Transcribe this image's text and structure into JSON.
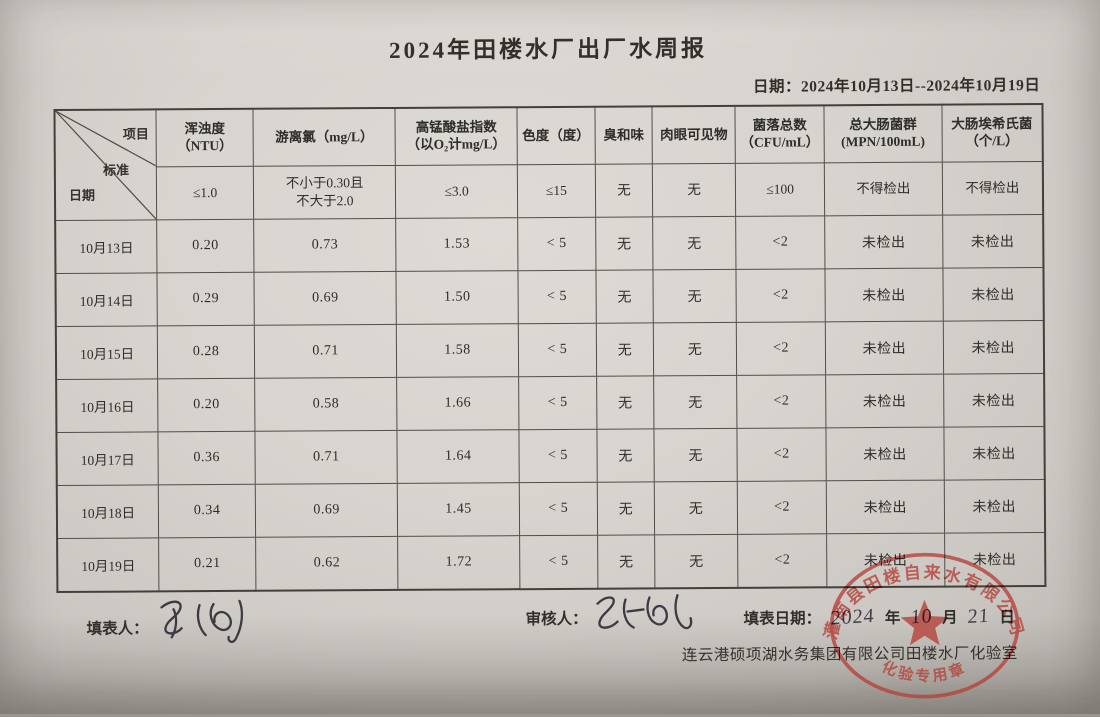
{
  "page": {
    "title": "2024年田楼水厂出厂水周报",
    "date_range_label": "日期：2024年10月13日--2024年10月19日"
  },
  "table": {
    "corner": {
      "top": "项目",
      "middle": "标准",
      "bottom": "日期"
    },
    "columns": [
      {
        "label": "浑浊度",
        "sub": "（NTU）"
      },
      {
        "label": "游离氯（mg/L）",
        "sub": ""
      },
      {
        "label": "高锰酸盐指数",
        "sub": "（以O₂计mg/L）"
      },
      {
        "label": "色度（度）",
        "sub": ""
      },
      {
        "label": "臭和味",
        "sub": ""
      },
      {
        "label": "肉眼可见物",
        "sub": ""
      },
      {
        "label": "菌落总数",
        "sub": "（CFU/mL）"
      },
      {
        "label": "总大肠菌群",
        "sub": "(MPN/100mL)"
      },
      {
        "label": "大肠埃希氏菌",
        "sub": "（个/L）"
      }
    ],
    "standards": [
      "≤1.0",
      "不小于0.30且\n不大于2.0",
      "≤3.0",
      "≤15",
      "无",
      "无",
      "≤100",
      "不得检出",
      "不得检出"
    ],
    "rows": [
      {
        "date": "10月13日",
        "values": [
          "0.20",
          "0.73",
          "1.53",
          "< 5",
          "无",
          "无",
          "<2",
          "未检出",
          "未检出"
        ]
      },
      {
        "date": "10月14日",
        "values": [
          "0.29",
          "0.69",
          "1.50",
          "< 5",
          "无",
          "无",
          "<2",
          "未检出",
          "未检出"
        ]
      },
      {
        "date": "10月15日",
        "values": [
          "0.28",
          "0.71",
          "1.58",
          "< 5",
          "无",
          "无",
          "<2",
          "未检出",
          "未检出"
        ]
      },
      {
        "date": "10月16日",
        "values": [
          "0.20",
          "0.58",
          "1.66",
          "< 5",
          "无",
          "无",
          "<2",
          "未检出",
          "未检出"
        ]
      },
      {
        "date": "10月17日",
        "values": [
          "0.36",
          "0.71",
          "1.64",
          "< 5",
          "无",
          "无",
          "<2",
          "未检出",
          "未检出"
        ]
      },
      {
        "date": "10月18日",
        "values": [
          "0.34",
          "0.69",
          "1.45",
          "< 5",
          "无",
          "无",
          "<2",
          "未检出",
          "未检出"
        ]
      },
      {
        "date": "10月19日",
        "values": [
          "0.21",
          "0.62",
          "1.72",
          "< 5",
          "无",
          "无",
          "<2",
          "未检出",
          "未检出"
        ]
      }
    ]
  },
  "footer": {
    "preparer_label": "填表人：",
    "reviewer_label": "审核人：",
    "fill_date_label": "填表日期：",
    "fill_date": {
      "year": "2024",
      "year_unit": "年",
      "month": "10",
      "month_unit": "月",
      "day": "21",
      "day_unit": "日"
    },
    "company_line": "连云港硕项湖水务集团有限公司田楼水厂化验室"
  },
  "stamp": {
    "top_text": "灌南县田楼自来水有限公司",
    "bottom_text": "化验专用章",
    "color": "#b5413a"
  }
}
